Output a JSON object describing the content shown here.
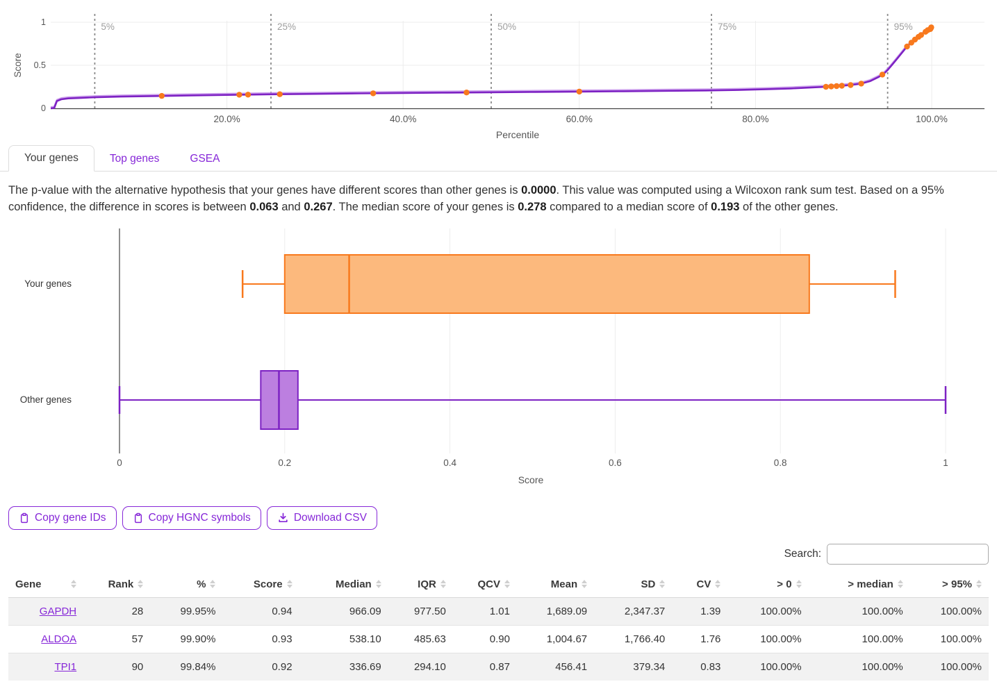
{
  "tabs": [
    {
      "label": "Your genes",
      "active": true
    },
    {
      "label": "Top genes",
      "active": false
    },
    {
      "label": "GSEA",
      "active": false
    }
  ],
  "summary": {
    "part1": "The p-value with the alternative hypothesis that your genes have different scores than other genes is ",
    "p_value": "0.0000",
    "part2": ". This value was computed using a Wilcoxon rank sum test. Based on a 95% confidence, the difference in scores is between ",
    "ci_low": "0.063",
    "part3": " and ",
    "ci_high": "0.267",
    "part4": ". The median score of your genes is ",
    "median_yours": "0.278",
    "part5": " compared to a median score of ",
    "median_others": "0.193",
    "part6": " of the other genes."
  },
  "chart_data": [
    {
      "type": "line",
      "title": "Gene score by percentile",
      "xlabel": "Percentile",
      "ylabel": "Score",
      "xlim": [
        0,
        106
      ],
      "ylim": [
        0,
        1
      ],
      "grid": true,
      "x_ticks": [
        {
          "value": 20,
          "label": "20.0%"
        },
        {
          "value": 40,
          "label": "40.0%"
        },
        {
          "value": 60,
          "label": "60.0%"
        },
        {
          "value": 80,
          "label": "80.0%"
        },
        {
          "value": 100,
          "label": "100.0%"
        }
      ],
      "y_ticks": [
        {
          "value": 0,
          "label": "0"
        },
        {
          "value": 0.5,
          "label": "0.5"
        },
        {
          "value": 1,
          "label": "1"
        }
      ],
      "percentile_markers": [
        {
          "value": 5,
          "label": "5%"
        },
        {
          "value": 25,
          "label": "25%"
        },
        {
          "value": 50,
          "label": "50%"
        },
        {
          "value": 75,
          "label": "75%"
        },
        {
          "value": 95,
          "label": "95%"
        }
      ],
      "series": [
        {
          "name": "all-genes-score-curve",
          "points": [
            [
              0,
              0.0
            ],
            [
              0.4,
              0.005
            ],
            [
              0.7,
              0.085
            ],
            [
              1.2,
              0.105
            ],
            [
              2,
              0.115
            ],
            [
              3.5,
              0.122
            ],
            [
              5,
              0.128
            ],
            [
              8,
              0.136
            ],
            [
              12,
              0.143
            ],
            [
              16,
              0.15
            ],
            [
              20,
              0.156
            ],
            [
              25,
              0.163
            ],
            [
              30,
              0.168
            ],
            [
              35,
              0.173
            ],
            [
              40,
              0.178
            ],
            [
              45,
              0.182
            ],
            [
              50,
              0.186
            ],
            [
              55,
              0.19
            ],
            [
              60,
              0.194
            ],
            [
              65,
              0.198
            ],
            [
              70,
              0.203
            ],
            [
              75,
              0.208
            ],
            [
              78,
              0.213
            ],
            [
              81,
              0.221
            ],
            [
              84,
              0.231
            ],
            [
              86,
              0.24
            ],
            [
              88,
              0.25
            ],
            [
              89,
              0.257
            ],
            [
              90,
              0.264
            ],
            [
              91,
              0.273
            ],
            [
              92,
              0.287
            ],
            [
              93,
              0.315
            ],
            [
              94,
              0.365
            ],
            [
              94.6,
              0.405
            ],
            [
              95,
              0.445
            ],
            [
              95.5,
              0.505
            ],
            [
              96,
              0.567
            ],
            [
              96.5,
              0.63
            ],
            [
              97,
              0.693
            ],
            [
              97.5,
              0.745
            ],
            [
              98,
              0.79
            ],
            [
              98.5,
              0.83
            ],
            [
              99,
              0.866
            ],
            [
              99.4,
              0.896
            ],
            [
              99.7,
              0.922
            ],
            [
              100,
              0.945
            ]
          ]
        }
      ],
      "your_genes_points": [
        [
          12.6,
          0.144
        ],
        [
          21.4,
          0.158
        ],
        [
          22.4,
          0.159
        ],
        [
          26,
          0.164
        ],
        [
          36.6,
          0.174
        ],
        [
          47.2,
          0.184
        ],
        [
          60,
          0.194
        ],
        [
          88,
          0.25
        ],
        [
          88.6,
          0.254
        ],
        [
          89.2,
          0.258
        ],
        [
          89.8,
          0.262
        ],
        [
          90.8,
          0.27
        ],
        [
          92,
          0.287
        ],
        [
          94.4,
          0.392
        ],
        [
          97.2,
          0.718
        ],
        [
          97.7,
          0.763
        ],
        [
          98.1,
          0.798
        ],
        [
          98.5,
          0.83
        ],
        [
          98.8,
          0.852
        ],
        [
          99.3,
          0.889
        ],
        [
          99.55,
          0.908
        ],
        [
          99.84,
          0.92
        ],
        [
          99.9,
          0.93
        ],
        [
          99.95,
          0.94
        ]
      ],
      "colors": {
        "line": "#7d22c3",
        "line_underlay": "#c18ae8",
        "points": "#f8791d",
        "marker_line": "#8a8a8a",
        "marker_label": "#9e9e9e"
      }
    },
    {
      "type": "boxplot",
      "title": "Score distribution: your genes vs other genes",
      "xlabel": "Score",
      "xlim": [
        0,
        1
      ],
      "grid": true,
      "x_ticks": [
        {
          "value": 0,
          "label": "0"
        },
        {
          "value": 0.2,
          "label": "0.2"
        },
        {
          "value": 0.4,
          "label": "0.4"
        },
        {
          "value": 0.6,
          "label": "0.6"
        },
        {
          "value": 0.8,
          "label": "0.8"
        },
        {
          "value": 1,
          "label": "1"
        }
      ],
      "series": [
        {
          "name": "Your genes",
          "min": 0.149,
          "q1": 0.2,
          "median": 0.278,
          "q3": 0.835,
          "max": 0.939,
          "color": "#f8791d",
          "fill": "#fcb97d"
        },
        {
          "name": "Other genes",
          "min": 0.0,
          "q1": 0.171,
          "median": 0.193,
          "q3": 0.216,
          "max": 1.0,
          "color": "#7d22c3",
          "fill": "#bc7fe0"
        }
      ]
    }
  ],
  "actions": [
    {
      "label": "Copy gene IDs",
      "icon": "clipboard-icon"
    },
    {
      "label": "Copy HGNC symbols",
      "icon": "clipboard-icon"
    },
    {
      "label": "Download CSV",
      "icon": "download-icon"
    }
  ],
  "search": {
    "label": "Search:",
    "value": ""
  },
  "table": {
    "columns": [
      "Gene",
      "Rank",
      "%",
      "Score",
      "Median",
      "IQR",
      "QCV",
      "Mean",
      "SD",
      "CV",
      "> 0",
      "> median",
      "> 95%"
    ],
    "rows": [
      [
        "GAPDH",
        "28",
        "99.95%",
        "0.94",
        "966.09",
        "977.50",
        "1.01",
        "1,689.09",
        "2,347.37",
        "1.39",
        "100.00%",
        "100.00%",
        "100.00%"
      ],
      [
        "ALDOA",
        "57",
        "99.90%",
        "0.93",
        "538.10",
        "485.63",
        "0.90",
        "1,004.67",
        "1,766.40",
        "1.76",
        "100.00%",
        "100.00%",
        "100.00%"
      ],
      [
        "TPI1",
        "90",
        "99.84%",
        "0.92",
        "336.69",
        "294.10",
        "0.87",
        "456.41",
        "379.34",
        "0.83",
        "100.00%",
        "100.00%",
        "100.00%"
      ]
    ]
  }
}
